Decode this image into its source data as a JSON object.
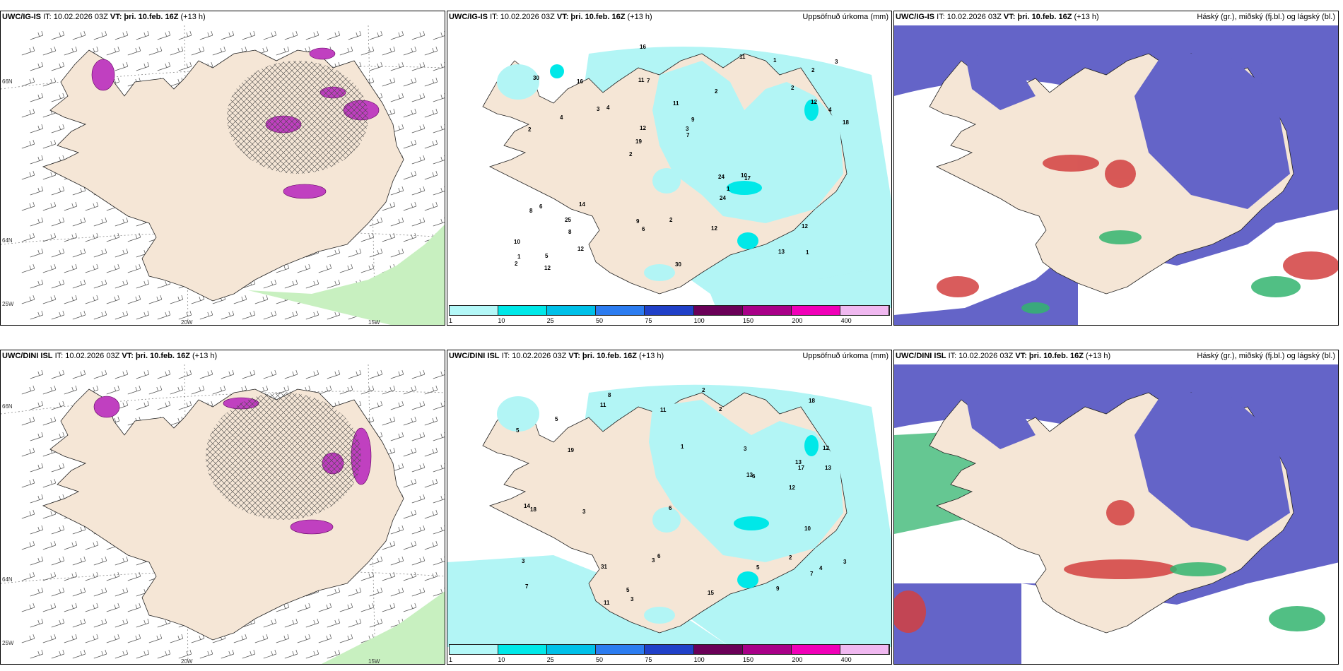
{
  "panels": [
    {
      "model": "UWC/IG-IS",
      "it": "IT: 10.02.2026 03Z",
      "vt": "VT: þri. 10.feb. 16Z",
      "lead": "(+13 h)",
      "right": ""
    },
    {
      "model": "UWC/IG-IS",
      "it": "IT: 10.02.2026 03Z",
      "vt": "VT: þri. 10.feb. 16Z",
      "lead": "(+13 h)",
      "right": "Uppsöfnuð úrkoma (mm)"
    },
    {
      "model": "UWC/IG-IS",
      "it": "IT: 10.02.2026 03Z",
      "vt": "VT: þri. 10.feb. 16Z",
      "lead": "(+13 h)",
      "right": "Háský (gr.), miðský (fj.bl.) og lágský (bl.)"
    },
    {
      "model": "UWC/DINI ISL",
      "it": "IT: 10.02.2026 03Z",
      "vt": "VT: þri. 10.feb. 16Z",
      "lead": "(+13 h)",
      "right": ""
    },
    {
      "model": "UWC/DINI ISL",
      "it": "IT: 10.02.2026 03Z",
      "vt": "VT: þri. 10.feb. 16Z",
      "lead": "(+13 h)",
      "right": "Uppsöfnuð úrkoma (mm)"
    },
    {
      "model": "UWC/DINI ISL",
      "it": "IT: 10.02.2026 03Z",
      "vt": "VT: þri. 10.feb. 16Z",
      "lead": "(+13 h)",
      "right": "Háský (gr.), miðský (fj.bl.) og lágský (bl.)"
    }
  ],
  "axes": {
    "lat66": "66N",
    "lat64": "64N",
    "lon20": "20W",
    "lon15": "15W",
    "lon25": "25W"
  },
  "legend": {
    "ticks": [
      "1",
      "10",
      "25",
      "50",
      "75",
      "100",
      "150",
      "200",
      "400"
    ],
    "colors": [
      "#b4f8f8",
      "#00e8e8",
      "#00c0e8",
      "#2c7cf0",
      "#2040c8",
      "#6a0058",
      "#a80088",
      "#f000b8",
      "#f0b8f0"
    ]
  },
  "colors": {
    "land": "#f5e6d6",
    "precip_light": "#b2f5f5",
    "cloud_high": "#6464c8",
    "cloud_low": "#d24040",
    "cloud_mid": "#32b46e",
    "rain_purple": "#c040c0"
  },
  "precip_labels_top": [
    "1",
    "2",
    "2",
    "2",
    "2",
    "5",
    "11",
    "11",
    "6",
    "4",
    "10",
    "8",
    "7",
    "9",
    "17",
    "30",
    "16",
    "18",
    "24",
    "12",
    "19",
    "9",
    "12",
    "16",
    "11",
    "14",
    "13",
    "12",
    "10",
    "30",
    "3",
    "4",
    "24",
    "12",
    "4",
    "3",
    "1",
    "6",
    "7",
    "8",
    "2",
    "3",
    "1",
    "12",
    "25",
    "12",
    "2",
    "2",
    "1"
  ],
  "precip_labels_bottom": [
    "2",
    "12",
    "4",
    "1",
    "7",
    "8",
    "13",
    "31",
    "18",
    "19",
    "13",
    "5",
    "12",
    "3",
    "3",
    "5",
    "7",
    "11",
    "6",
    "17",
    "14",
    "18",
    "15",
    "13",
    "5",
    "3",
    "2",
    "2",
    "3",
    "3",
    "3",
    "5",
    "11",
    "6",
    "10",
    "9",
    "6",
    "11"
  ]
}
